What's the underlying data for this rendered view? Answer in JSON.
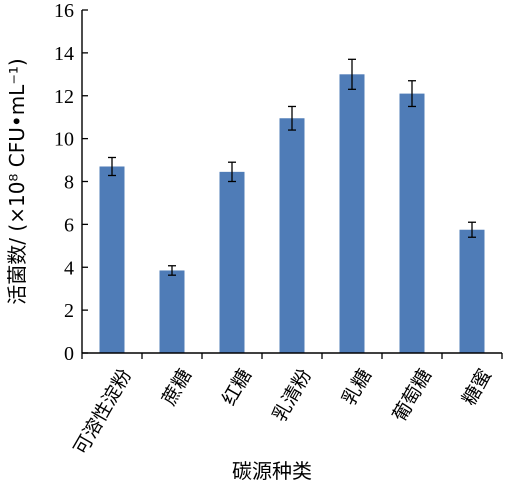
{
  "chart_data": {
    "type": "bar",
    "categories": [
      "可溶性淀粉",
      "蔗糖",
      "红糖",
      "乳清粉",
      "乳糖",
      "葡萄糖",
      "糖蜜"
    ],
    "values": [
      8.7,
      3.85,
      8.45,
      10.95,
      13.0,
      12.1,
      5.75
    ],
    "errors": [
      0.42,
      0.22,
      0.45,
      0.55,
      0.7,
      0.6,
      0.35
    ],
    "xlabel": "碳源种类",
    "ylabel": "活菌数/ (×10⁸ CFU•mL⁻¹)",
    "ylim": [
      0,
      16
    ],
    "yticks": [
      0,
      2,
      4,
      6,
      8,
      10,
      12,
      14,
      16
    ],
    "bar_color": "#4f7cb7",
    "grid": false,
    "legend": "none"
  }
}
